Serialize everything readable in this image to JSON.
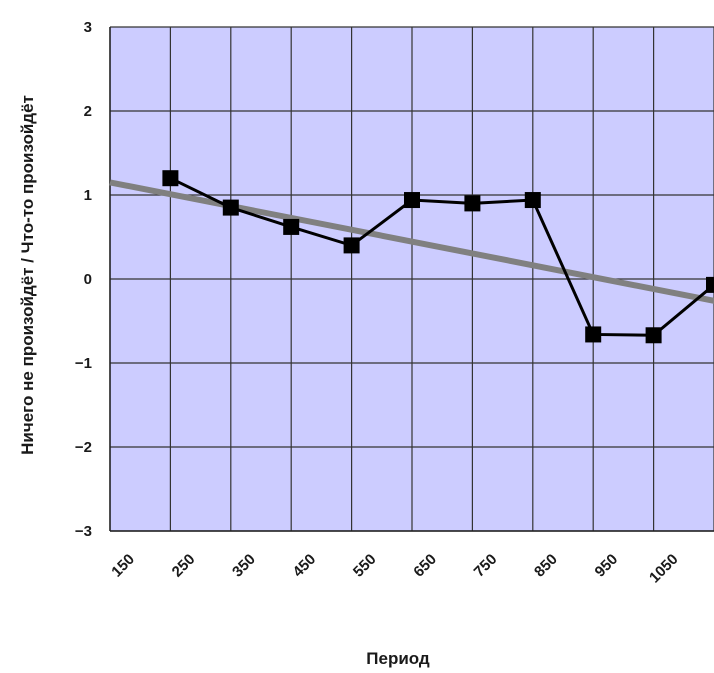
{
  "chart_data": {
    "type": "line",
    "title": "",
    "xlabel": "Период",
    "ylabel": "Ничего не произойдёт / Что-то произойдёт",
    "x_ticks": [
      "150",
      "250",
      "350",
      "450",
      "550",
      "650",
      "750",
      "850",
      "950",
      "1050"
    ],
    "y_ticks": [
      "3",
      "2",
      "1",
      "0",
      "−1",
      "−2",
      "−3"
    ],
    "ylim": [
      -3,
      3
    ],
    "xlim": [
      100,
      1100
    ],
    "grid": true,
    "series": [
      {
        "x": [
          200,
          300,
          400,
          500,
          600,
          700,
          800,
          900,
          1000,
          1100
        ],
        "values": [
          1.2,
          0.85,
          0.62,
          0.4,
          0.94,
          0.9,
          0.94,
          -0.66,
          -0.67,
          -0.07
        ],
        "marker": "square",
        "color": "#000000"
      }
    ],
    "trendline": {
      "x": [
        100,
        1150
      ],
      "values": [
        1.15,
        -0.33
      ],
      "color": "#808080"
    },
    "plot_background": "#ccccff"
  }
}
